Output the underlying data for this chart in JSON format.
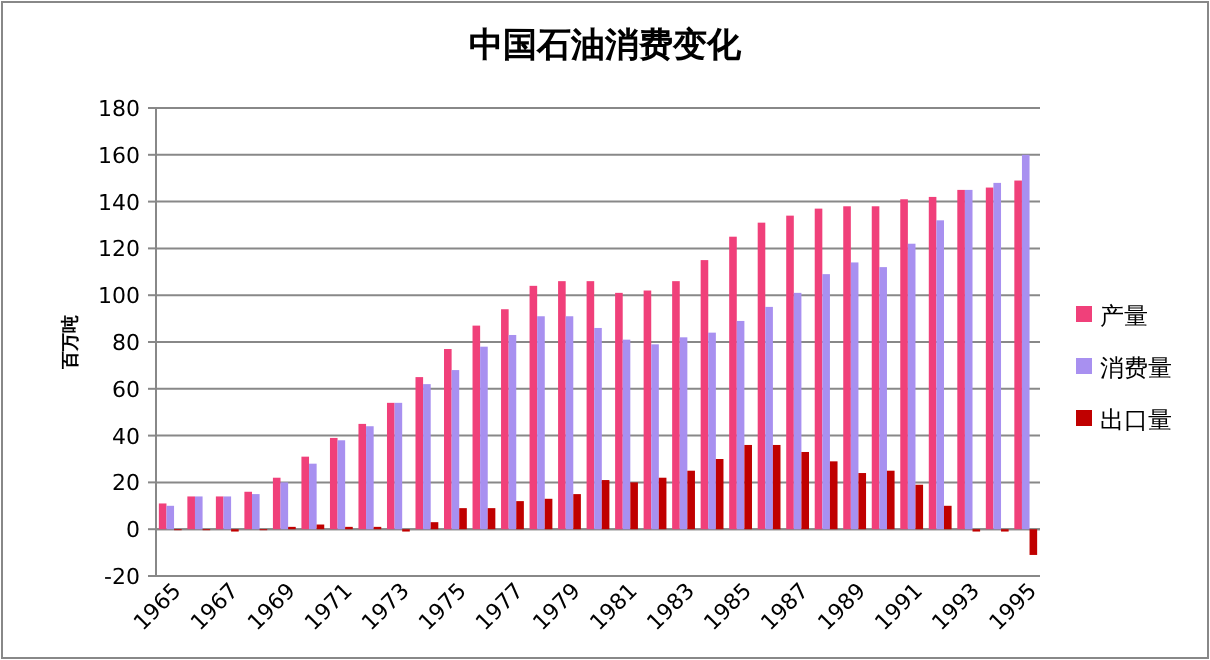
{
  "chart_data": {
    "type": "bar",
    "title": "中国石油消费变化",
    "ylabel": "百万吨",
    "categories": [
      "1965",
      null,
      "1967",
      null,
      "1969",
      null,
      "1971",
      null,
      "1973",
      null,
      "1975",
      null,
      "1977",
      null,
      "1979",
      null,
      "1981",
      null,
      "1983",
      null,
      "1985",
      null,
      "1987",
      null,
      "1989",
      null,
      "1991",
      null,
      "1993",
      null,
      "1995"
    ],
    "series": [
      {
        "name": "产量",
        "color": "#f0407a",
        "values": [
          11,
          14,
          14,
          16,
          22,
          31,
          39,
          45,
          54,
          65,
          77,
          87,
          94,
          104,
          106,
          106,
          101,
          102,
          106,
          115,
          125,
          131,
          134,
          137,
          138,
          138,
          141,
          142,
          145,
          146,
          149
        ]
      },
      {
        "name": "消费量",
        "color": "#a890f0",
        "values": [
          10,
          14,
          14,
          15,
          20,
          28,
          38,
          44,
          54,
          62,
          68,
          78,
          83,
          91,
          91,
          86,
          81,
          79,
          82,
          84,
          89,
          95,
          101,
          109,
          114,
          112,
          122,
          132,
          145,
          148,
          160
        ]
      },
      {
        "name": "出口量",
        "color": "#c00000",
        "values": [
          0,
          0,
          -1,
          0,
          1,
          2,
          1,
          1,
          -1,
          3,
          9,
          9,
          12,
          13,
          15,
          21,
          20,
          22,
          25,
          30,
          36,
          36,
          33,
          29,
          24,
          25,
          19,
          10,
          -1,
          -1,
          -11
        ]
      }
    ],
    "ylim": [
      -20,
      180
    ],
    "yticks": [
      -20,
      0,
      20,
      40,
      60,
      80,
      100,
      120,
      140,
      160,
      180
    ],
    "grid": "y",
    "legend": "right"
  }
}
